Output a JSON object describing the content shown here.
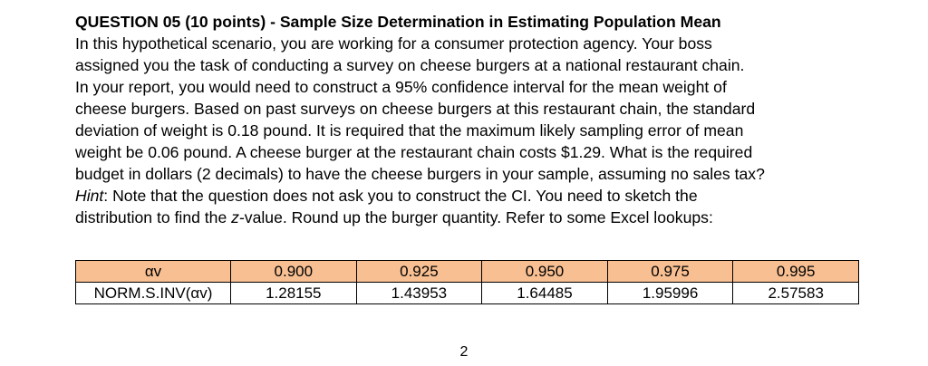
{
  "question": {
    "title": "QUESTION 05 (10 points) - Sample Size Determination in Estimating Population Mean",
    "lines": [
      "In this hypothetical scenario, you are working for a consumer protection agency. Your boss",
      "assigned you the task of conducting a survey on cheese burgers at a national restaurant chain.",
      "In your report, you would need to construct a 95% confidence interval for the mean weight of",
      "cheese burgers. Based on past surveys on cheese burgers at this restaurant chain, the standard",
      "deviation of weight is 0.18 pound. It is required that the maximum likely sampling error of mean",
      "weight be 0.06 pound. A cheese burger at the restaurant chain costs $1.29. What is the required",
      "budget in dollars (2 decimals) to have the cheese burgers in your sample, assuming no sales tax?"
    ],
    "hint": {
      "label": "Hint",
      "line1_rest": ": Note that the question does not ask you to construct the CI. You need to sketch the",
      "line2_pre": "distribution to find the ",
      "line2_italic": "z",
      "line2_post": "-value. Round up the burger quantity. Refer to some Excel lookups:"
    }
  },
  "table": {
    "header": [
      "αv",
      "0.900",
      "0.925",
      "0.950",
      "0.975",
      "0.995"
    ],
    "row": [
      "NORM.S.INV(αv)",
      "1.28155",
      "1.43953",
      "1.64485",
      "1.95996",
      "2.57583"
    ],
    "header_color": "#f8bf92"
  },
  "page_number": "2"
}
